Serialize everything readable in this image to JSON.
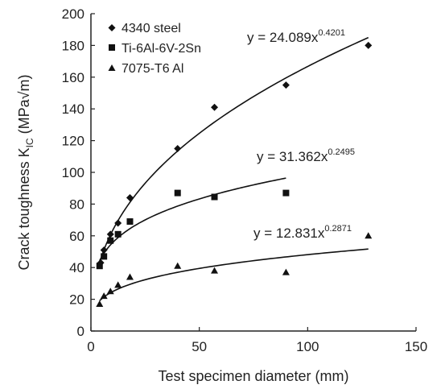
{
  "chart_data": {
    "type": "scatter",
    "title": "",
    "xlabel": "Test specimen diameter (mm)",
    "ylabel": {
      "prefix": "Crack toughness  K",
      "subscript": "IC",
      "unit_open": "  (MPa",
      "radical": "√",
      "unit_close": "m)"
    },
    "xlim": [
      0,
      150
    ],
    "ylim": [
      0,
      200
    ],
    "xticks": [
      "0",
      "50",
      "100",
      "150"
    ],
    "yticks": [
      "0",
      "20",
      "40",
      "60",
      "80",
      "100",
      "120",
      "140",
      "160",
      "180",
      "200"
    ],
    "legend_position": "top-left",
    "grid": false,
    "series": [
      {
        "name": "4340 steel",
        "marker": "diamond",
        "x": [
          4.5,
          6,
          9,
          12.5,
          18,
          40,
          57,
          90,
          128
        ],
        "y": [
          43,
          51,
          61,
          68,
          84,
          115,
          141,
          155,
          180
        ],
        "fit": {
          "a": 24.089,
          "b": 0.4201,
          "x_range": [
            4,
            128
          ]
        },
        "equation": {
          "base": "y = 24.089x",
          "exponent": "0.4201"
        }
      },
      {
        "name": "Ti-6Al-6V-2Sn",
        "marker": "square",
        "x": [
          4,
          6,
          9,
          12.5,
          18,
          40,
          57,
          90
        ],
        "y": [
          41,
          47,
          57,
          61,
          69,
          87,
          84.5,
          87
        ],
        "fit": {
          "a": 31.362,
          "b": 0.2495,
          "x_range": [
            4,
            90
          ]
        },
        "equation": {
          "base": "y = 31.362x",
          "exponent": "0.2495"
        }
      },
      {
        "name": "7075-T6 Al",
        "marker": "triangle",
        "x": [
          4,
          6,
          9,
          12.5,
          18,
          40,
          57,
          90,
          128
        ],
        "y": [
          17,
          22,
          25,
          29,
          34,
          41,
          38,
          37,
          60
        ],
        "fit": {
          "a": 12.831,
          "b": 0.2871,
          "x_range": [
            4,
            128
          ]
        },
        "equation": {
          "base": "y = 12.831x",
          "exponent": "0.2871"
        }
      }
    ]
  }
}
